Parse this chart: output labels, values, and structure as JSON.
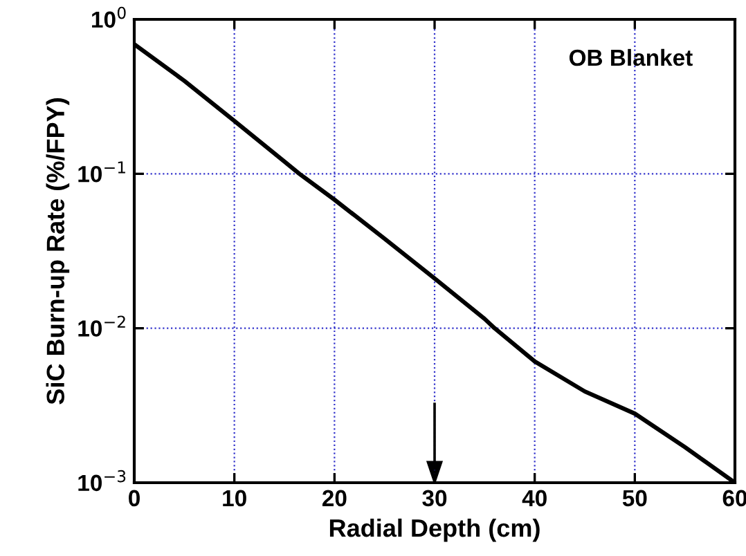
{
  "chart_data": {
    "type": "line",
    "xlabel": "Radial Depth (cm)",
    "ylabel": "SiC Burn-up Rate (%/FPY)",
    "x": [
      0,
      5,
      10,
      15,
      16.5,
      20,
      25,
      30,
      35,
      36,
      40,
      45,
      50,
      55,
      60
    ],
    "series": [
      {
        "color": "#000000",
        "values": [
          0.69,
          0.4,
          0.22,
          0.12,
          0.1,
          0.068,
          0.038,
          0.021,
          0.0115,
          0.01,
          0.0061,
          0.0039,
          0.0028,
          0.0017,
          0.001
        ]
      }
    ],
    "log": true,
    "xlim": [
      0,
      60
    ],
    "xticks": [
      0,
      10,
      20,
      30,
      40,
      50,
      60
    ],
    "ylim": [
      0.001,
      1
    ],
    "yticks": [
      {
        "value": 0.001,
        "label": "10$^{−3}$"
      },
      {
        "value": 0.01,
        "label": "10$^{−2}$"
      },
      {
        "value": 0.1,
        "label": "10$^{−1}$"
      },
      {
        "value": 1,
        "label": "10$^{0}$"
      }
    ],
    "grid": true,
    "marker": "none",
    "line_style": "solid",
    "ref_lines": [
      {
        "axis": "x",
        "value": 30,
        "label": null,
        "color": "#000000",
        "line_style": "solid"
      }
    ],
    "annotations": [
      "OB Blanket"
    ]
  }
}
